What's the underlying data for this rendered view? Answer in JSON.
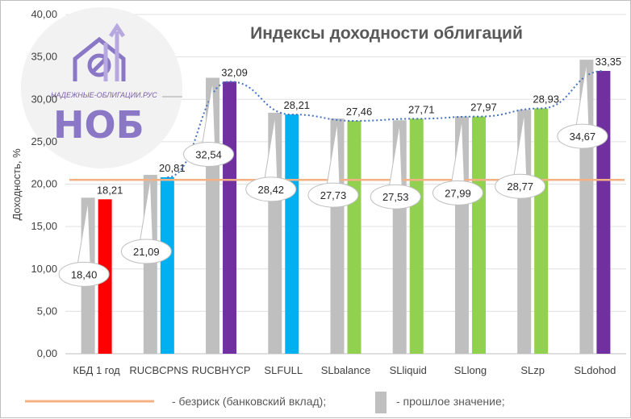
{
  "chart_data": {
    "type": "bar",
    "title": "Индексы доходности облигаций",
    "ylabel": "Доходность, %",
    "xlabel": "",
    "ylim": [
      0,
      40
    ],
    "yticks": [
      "0,00",
      "5,00",
      "10,00",
      "15,00",
      "20,00",
      "25,00",
      "30,00",
      "35,00",
      "40,00"
    ],
    "grid": true,
    "categories": [
      "КБД 1 год",
      "RUCBCPNS",
      "RUCBHYCP",
      "SLFULL",
      "SLbalance",
      "SLliquid",
      "SLlong",
      "SLzp",
      "SLdohod"
    ],
    "series": [
      {
        "name": "прошлое значение",
        "values": [
          18.4,
          21.09,
          32.54,
          28.42,
          27.73,
          27.53,
          27.99,
          28.77,
          34.67
        ],
        "labels": [
          "18,40",
          "21,09",
          "32,54",
          "28,42",
          "27,73",
          "27,53",
          "27,99",
          "28,77",
          "34,67"
        ],
        "color": "#bfbfbf"
      },
      {
        "values": [
          18.21,
          20.81,
          32.09,
          28.21,
          27.46,
          27.71,
          27.97,
          28.93,
          33.35
        ],
        "labels": [
          "18,21",
          "20,81",
          "32,09",
          "28,21",
          "27,46",
          "27,71",
          "27,97",
          "28,93",
          "33,35"
        ],
        "colors": [
          "#ff0000",
          "#00b0f0",
          "#7030a0",
          "#00b0f0",
          "#92d050",
          "#92d050",
          "#92d050",
          "#92d050",
          "#7030a0"
        ]
      }
    ],
    "reference_line": {
      "name": "безриск (банковский вклад)",
      "value": 20.5,
      "color": "#f4b183"
    },
    "trend_line": {
      "color": "#4472c4",
      "style": "dotted"
    },
    "legend": {
      "position": "bottom",
      "items": [
        "- безриск (банковский вклад);",
        "- прошлое значение;"
      ]
    }
  },
  "logo": {
    "site": "НАДЕЖНЫЕ-ОБЛИГАЦИИ.РУС",
    "name": "НОБ",
    "color": "#8a77c5"
  }
}
